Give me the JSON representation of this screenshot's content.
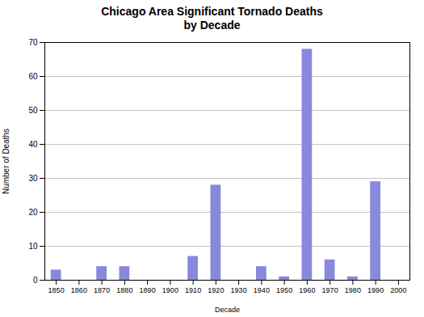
{
  "chart_data": {
    "type": "bar",
    "title": "Chicago Area Significant Tornado Deaths\nby Decade",
    "x": [
      1850,
      1860,
      1870,
      1880,
      1890,
      1900,
      1910,
      1920,
      1930,
      1940,
      1950,
      1960,
      1970,
      1980,
      1990,
      2000
    ],
    "values": [
      3,
      0,
      4,
      4,
      0,
      0,
      7,
      28,
      0,
      4,
      1,
      68,
      6,
      1,
      29,
      0
    ],
    "color": "#8888dd",
    "xlabel": "Decade",
    "ylabel": "Number of Deaths",
    "xlim": [
      1845,
      2005
    ],
    "xticks": [
      1850,
      1860,
      1870,
      1880,
      1890,
      1900,
      1910,
      1920,
      1930,
      1940,
      1950,
      1960,
      1970,
      1980,
      1990,
      2000
    ],
    "ylim": [
      0,
      70
    ],
    "yticks": [
      0,
      10,
      20,
      30,
      40,
      50,
      60,
      70
    ],
    "grid": true
  }
}
